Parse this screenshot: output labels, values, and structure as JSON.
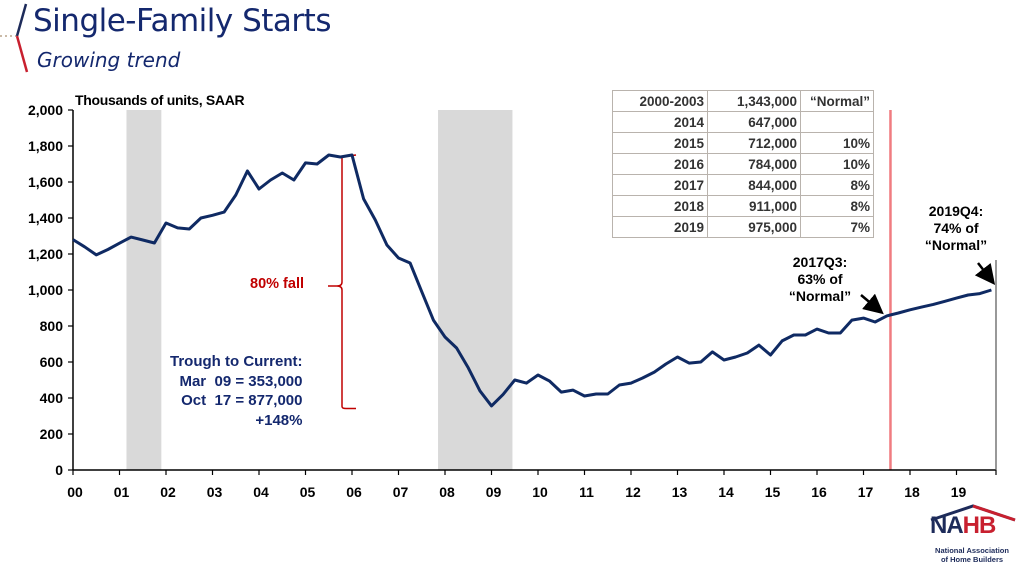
{
  "header": {
    "title": "Single-Family Starts",
    "subtitle": "Growing trend"
  },
  "colors": {
    "title": "#14286e",
    "series": "#0f2a63",
    "recession": "#d9d9d9",
    "marker_line": "#f07c80",
    "fall_annotation": "#c00000",
    "trough_annotation": "#14286e"
  },
  "chart_data": {
    "type": "line",
    "title": "Single-Family Starts",
    "subtitle": "Growing trend",
    "ylabel": "Thousands of units, SAAR",
    "xlabel": "",
    "ylim": [
      0,
      2000
    ],
    "xlim": [
      2000,
      2019.85
    ],
    "yticks": [
      0,
      200,
      400,
      600,
      800,
      1000,
      1200,
      1400,
      1600,
      1800,
      2000
    ],
    "ytick_labels": [
      "0",
      "200",
      "400",
      "600",
      "800",
      "1,000",
      "1,200",
      "1,400",
      "1,600",
      "1,800",
      "2,000"
    ],
    "xticks": [
      2000,
      2001,
      2002,
      2003,
      2004,
      2005,
      2006,
      2007,
      2008,
      2009,
      2010,
      2011,
      2012,
      2013,
      2014,
      2015,
      2016,
      2017,
      2018,
      2019
    ],
    "xtick_labels": [
      "00",
      "01",
      "02",
      "03",
      "04",
      "05",
      "06",
      "07",
      "08",
      "09",
      "10",
      "11",
      "12",
      "13",
      "14",
      "15",
      "16",
      "17",
      "18",
      "19"
    ],
    "grid": false,
    "series": [
      {
        "name": "Single-family starts (quarterly, SAAR, thousands)",
        "x": [
          2000.0,
          2000.25,
          2000.5,
          2000.75,
          2001.0,
          2001.25,
          2001.5,
          2001.75,
          2002.0,
          2002.25,
          2002.5,
          2002.75,
          2003.0,
          2003.25,
          2003.5,
          2003.75,
          2004.0,
          2004.25,
          2004.5,
          2004.75,
          2005.0,
          2005.25,
          2005.5,
          2005.75,
          2006.0,
          2006.25,
          2006.5,
          2006.75,
          2007.0,
          2007.25,
          2007.5,
          2007.75,
          2008.0,
          2008.25,
          2008.5,
          2008.75,
          2009.0,
          2009.25,
          2009.5,
          2009.75,
          2010.0,
          2010.25,
          2010.5,
          2010.75,
          2011.0,
          2011.25,
          2011.5,
          2011.75,
          2012.0,
          2012.25,
          2012.5,
          2012.75,
          2013.0,
          2013.25,
          2013.5,
          2013.75,
          2014.0,
          2014.25,
          2014.5,
          2014.75,
          2015.0,
          2015.25,
          2015.5,
          2015.75,
          2016.0,
          2016.25,
          2016.5,
          2016.75,
          2017.0,
          2017.25,
          2017.5,
          2017.75,
          2018.0,
          2018.25,
          2018.5,
          2018.75,
          2019.0,
          2019.25,
          2019.5,
          2019.75
        ],
        "values": [
          1280,
          1240,
          1195,
          1225,
          1260,
          1294,
          1278,
          1261,
          1372,
          1345,
          1339,
          1400,
          1415,
          1433,
          1528,
          1661,
          1561,
          1611,
          1650,
          1611,
          1706,
          1700,
          1750,
          1739,
          1750,
          1506,
          1389,
          1250,
          1178,
          1150,
          990,
          833,
          739,
          678,
          567,
          440,
          356,
          420,
          500,
          483,
          528,
          494,
          433,
          444,
          411,
          422,
          422,
          472,
          483,
          511,
          544,
          589,
          628,
          594,
          600,
          656,
          611,
          628,
          650,
          694,
          639,
          717,
          750,
          750,
          783,
          761,
          761,
          833,
          844,
          822,
          856,
          872,
          890,
          905,
          920,
          937,
          955,
          972,
          980,
          1000
        ]
      }
    ],
    "recessions": [
      {
        "start": 2001.15,
        "end": 2001.9
      },
      {
        "start": 2007.85,
        "end": 2009.45
      }
    ],
    "vertical_marker": {
      "x": 2017.58
    },
    "annotations": {
      "fall": {
        "label": "80% fall",
        "from_value": 1740,
        "to_value": 353
      },
      "trough": {
        "lines": [
          "Trough to Current:",
          "Mar  09 = 353,000",
          "Oct  17 = 877,000",
          "+148%"
        ]
      },
      "q3_2017": {
        "lines": [
          "2017Q3:",
          "63% of",
          "“Normal”"
        ]
      },
      "q4_2019": {
        "lines": [
          "2019Q4:",
          "74% of",
          "“Normal”"
        ]
      }
    },
    "table": {
      "rows": [
        {
          "period": "2000-2003",
          "value": "1,343,000",
          "note": "“Normal”"
        },
        {
          "period": "2014",
          "value": "647,000",
          "note": ""
        },
        {
          "period": "2015",
          "value": "712,000",
          "note": "10%"
        },
        {
          "period": "2016",
          "value": "784,000",
          "note": "10%"
        },
        {
          "period": "2017",
          "value": "844,000",
          "note": "8%"
        },
        {
          "period": "2018",
          "value": "911,000",
          "note": "8%"
        },
        {
          "period": "2019",
          "value": "975,000",
          "note": "7%"
        }
      ]
    }
  },
  "logo": {
    "name": "NAHB",
    "line1": "National Association",
    "line2": "of Home Builders"
  }
}
